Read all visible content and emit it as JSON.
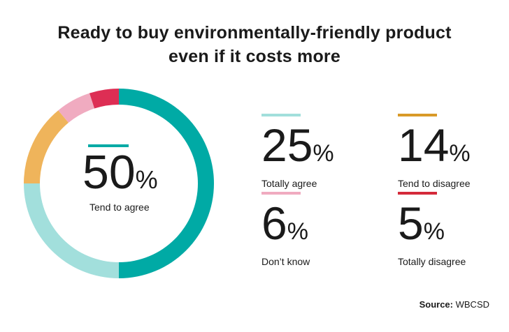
{
  "title_line1": "Ready to buy environmentally-friendly product",
  "title_line2": "even if it costs more",
  "chart_data": {
    "type": "pie",
    "title": "Ready to buy environmentally-friendly product even if it costs more",
    "categories": [
      "Tend to agree",
      "Totally agree",
      "Tend to disagree",
      "Don't know",
      "Totally disagree"
    ],
    "values": [
      50,
      25,
      14,
      6,
      5
    ],
    "colors": [
      "#00aaa5",
      "#a2dfdc",
      "#efb45b",
      "#f0abc0",
      "#dd2e54"
    ],
    "unit": "%"
  },
  "center": {
    "value": "50",
    "unit": "%",
    "label": "Tend to agree",
    "bar_color": "#00aaa5"
  },
  "stats": [
    {
      "value": "25",
      "unit": "%",
      "label": "Totally agree",
      "bar_color": "#a2dfdc"
    },
    {
      "value": "14",
      "unit": "%",
      "label": "Tend to disagree",
      "bar_color": "#d99a28"
    },
    {
      "value": "6",
      "unit": "%",
      "label": "Don’t know",
      "bar_color": "#f0abc0"
    },
    {
      "value": "5",
      "unit": "%",
      "label": "Totally disagree",
      "bar_color": "#d42a3a"
    }
  ],
  "source": {
    "prefix": "Source:",
    "name": "WBCSD"
  }
}
